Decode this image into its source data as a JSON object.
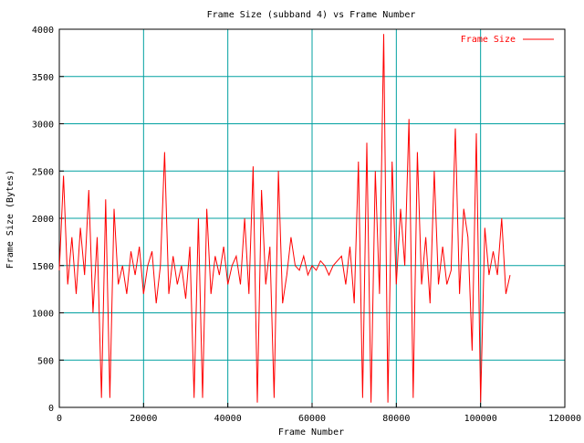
{
  "chart_data": {
    "type": "line",
    "title": "Frame Size (subband 4) vs Frame Number",
    "xlabel": "Frame Number",
    "ylabel": "Frame Size (Bytes)",
    "xlim": [
      0,
      120000
    ],
    "ylim": [
      0,
      4000
    ],
    "x_ticks": [
      0,
      20000,
      40000,
      60000,
      80000,
      100000,
      120000
    ],
    "y_ticks": [
      0,
      500,
      1000,
      1500,
      2000,
      2500,
      3000,
      3500,
      4000
    ],
    "grid": true,
    "legend_position": "top-right",
    "colors": {
      "series": "#ff0000",
      "grid": "#00a0a0",
      "axes": "#000000"
    },
    "series": [
      {
        "name": "Frame Size",
        "x": [
          0,
          1000,
          2000,
          3000,
          4000,
          5000,
          6000,
          7000,
          8000,
          9000,
          10000,
          11000,
          12000,
          13000,
          14000,
          15000,
          16000,
          17000,
          18000,
          19000,
          20000,
          21000,
          22000,
          23000,
          24000,
          25000,
          26000,
          27000,
          28000,
          29000,
          30000,
          31000,
          32000,
          33000,
          34000,
          35000,
          36000,
          37000,
          38000,
          39000,
          40000,
          41000,
          42000,
          43000,
          44000,
          45000,
          46000,
          47000,
          48000,
          49000,
          50000,
          51000,
          52000,
          53000,
          54000,
          55000,
          56000,
          57000,
          58000,
          59000,
          60000,
          61000,
          62000,
          63000,
          64000,
          65000,
          66000,
          67000,
          68000,
          69000,
          70000,
          71000,
          72000,
          73000,
          74000,
          75000,
          76000,
          77000,
          78000,
          79000,
          80000,
          81000,
          82000,
          83000,
          84000,
          85000,
          86000,
          87000,
          88000,
          89000,
          90000,
          91000,
          92000,
          93000,
          94000,
          95000,
          96000,
          97000,
          98000,
          99000,
          100000,
          101000,
          102000,
          103000,
          104000,
          105000,
          106000,
          107000
        ],
        "y": [
          1450,
          2450,
          1300,
          1800,
          1200,
          1900,
          1400,
          2300,
          1000,
          1800,
          100,
          2200,
          100,
          2100,
          1300,
          1500,
          1200,
          1650,
          1400,
          1700,
          1200,
          1500,
          1650,
          1100,
          1500,
          2700,
          1200,
          1600,
          1300,
          1500,
          1150,
          1700,
          100,
          2000,
          100,
          2100,
          1200,
          1600,
          1400,
          1700,
          1300,
          1500,
          1600,
          1300,
          2000,
          1200,
          2550,
          50,
          2300,
          1300,
          1700,
          100,
          2500,
          1100,
          1400,
          1800,
          1500,
          1450,
          1600,
          1400,
          1500,
          1450,
          1550,
          1500,
          1400,
          1500,
          1550,
          1600,
          1300,
          1700,
          1100,
          2600,
          100,
          2800,
          50,
          2500,
          1200,
          3950,
          50,
          2600,
          1300,
          2100,
          1500,
          3050,
          100,
          2700,
          1300,
          1800,
          1100,
          2500,
          1300,
          1700,
          1300,
          1450,
          2950,
          1200,
          2100,
          1800,
          600,
          2900,
          50,
          1900,
          1400,
          1650,
          1400,
          2000,
          1200,
          1400
        ]
      }
    ]
  }
}
